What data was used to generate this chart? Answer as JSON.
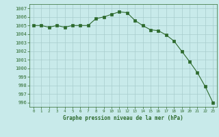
{
  "x": [
    0,
    1,
    2,
    3,
    4,
    5,
    6,
    7,
    8,
    9,
    10,
    11,
    12,
    13,
    14,
    15,
    16,
    17,
    18,
    19,
    20,
    21,
    22,
    23
  ],
  "y": [
    1005.0,
    1005.0,
    1004.8,
    1005.0,
    1004.8,
    1005.0,
    1005.0,
    1005.0,
    1005.8,
    1006.0,
    1006.3,
    1006.6,
    1006.5,
    1005.6,
    1005.0,
    1004.5,
    1004.4,
    1003.9,
    1003.2,
    1002.0,
    1000.8,
    999.5,
    997.9,
    996.0
  ],
  "line_color": "#2d6a2d",
  "marker": "s",
  "marker_size": 2.5,
  "bg_color": "#c8eaea",
  "grid_color": "#a8cccc",
  "xlabel": "Graphe pression niveau de la mer (hPa)",
  "ylim": [
    995.5,
    1007.5
  ],
  "yticks": [
    996,
    997,
    998,
    999,
    1000,
    1001,
    1002,
    1003,
    1004,
    1005,
    1006,
    1007
  ],
  "xticks": [
    0,
    1,
    2,
    3,
    4,
    5,
    6,
    7,
    8,
    9,
    10,
    11,
    12,
    13,
    14,
    15,
    16,
    17,
    18,
    19,
    20,
    21,
    22,
    23
  ],
  "axis_color": "#2d6a2d",
  "tick_color": "#2d6a2d",
  "label_color": "#2d6a2d"
}
